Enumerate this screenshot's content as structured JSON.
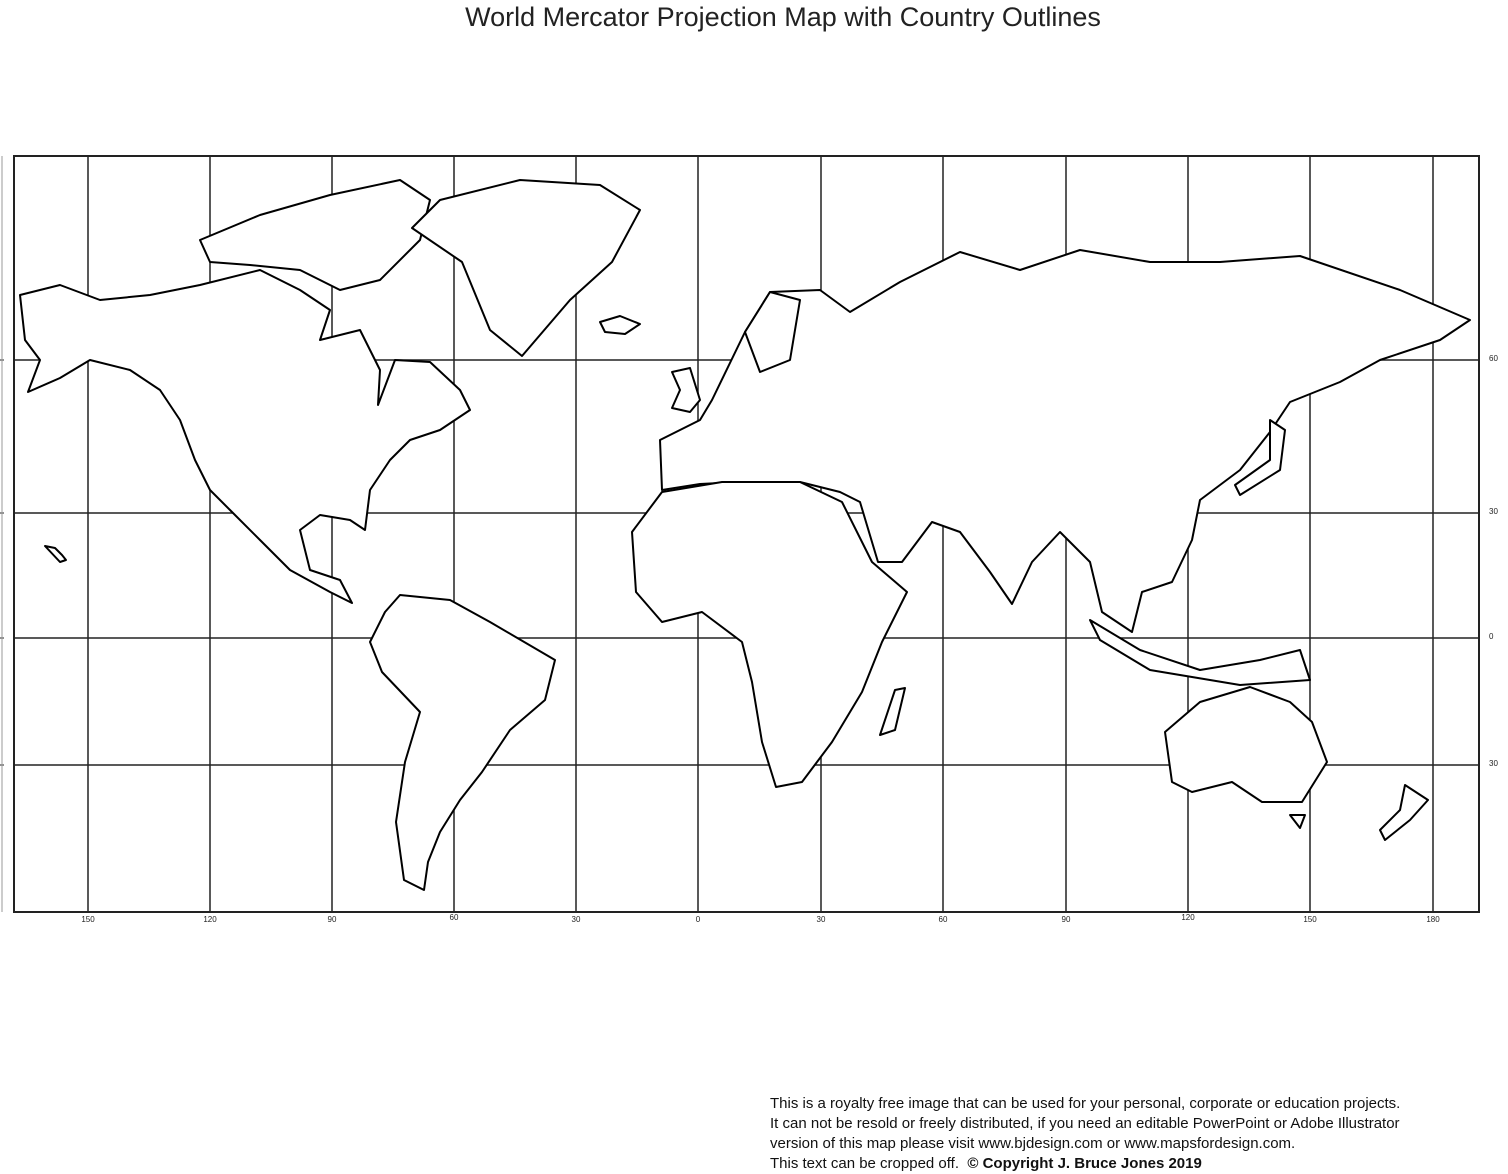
{
  "title": "World Mercator Projection Map with Country Outlines",
  "longitude_labels": [
    "150",
    "120",
    "90",
    "60",
    "30",
    "0",
    "30",
    "60",
    "90",
    "120",
    "150",
    "180"
  ],
  "latitude_labels": [
    "60",
    "30",
    "0",
    "30"
  ],
  "footer": {
    "line1": "This is a royalty free image that can be used for your personal, corporate or education projects.",
    "line2": "It can not be resold or freely distributed, if you need an editable PowerPoint or Adobe Illustrator",
    "line3": "version of this map please visit www.bjdesign.com or www.mapsfordesign.com.",
    "line4": "This text can be cropped off.",
    "copyright": "© Copyright J. Bruce Jones 2019"
  },
  "colors": {
    "land_fill": "#ffffff",
    "outline": "#000000",
    "background": "#ffffff"
  }
}
